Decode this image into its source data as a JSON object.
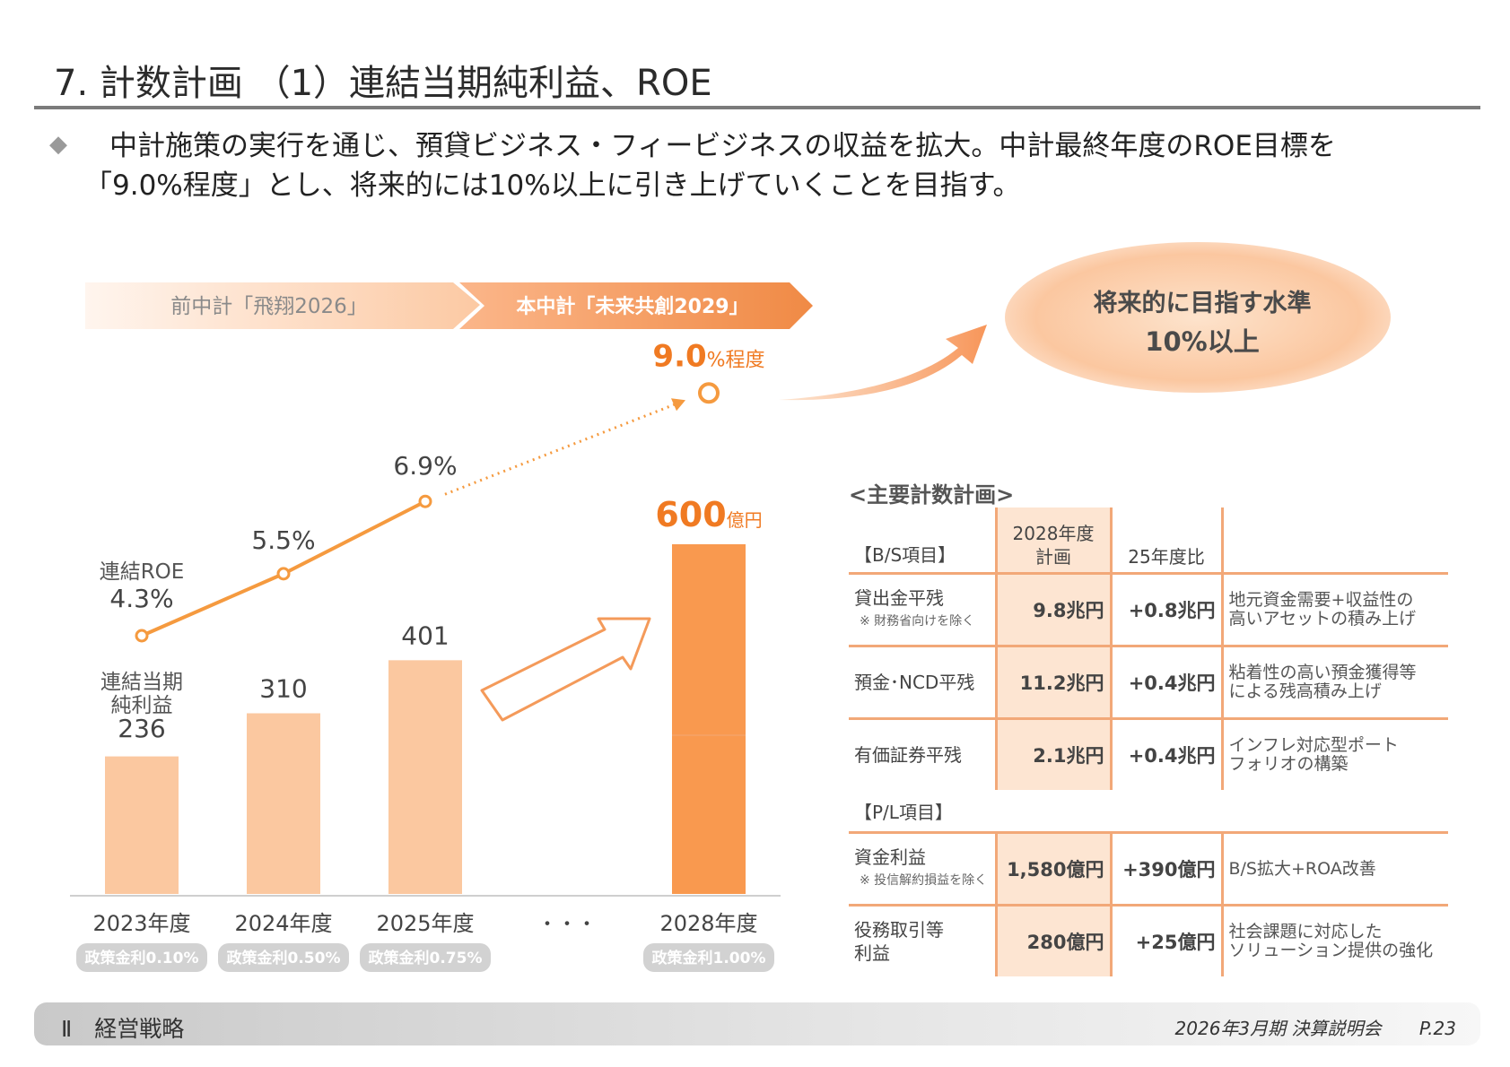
{
  "header": {
    "title": "7. 計数計画 （1）連結当期純利益、ROE",
    "bullet": "◆",
    "lead_line1": "中計施策の実行を通じ、預貸ビジネス・フィービジネスの収益を拡大。中計最終年度のROE目標を",
    "lead_line2": "「9.0%程度」とし、将来的には10%以上に引き上げていくことを目指す。"
  },
  "phases": {
    "previous": "前中計「飛翔2026」",
    "current": "本中計「未来共創2029」"
  },
  "future_target": {
    "line1": "将来的に目指す水準",
    "line2": "10%以上"
  },
  "chart_data": {
    "type": "bar",
    "categories": [
      "2023年度",
      "2024年度",
      "2025年度",
      "2028年度"
    ],
    "gap_label": "・・・",
    "net_income_label": "連結当期\n純利益",
    "net_income_label_line1": "連結当期",
    "net_income_label_line2": "純利益",
    "net_income_values": [
      236,
      310,
      401,
      600
    ],
    "net_income_value_labels": [
      "236",
      "310",
      "401",
      "600"
    ],
    "net_income_unit": "億円",
    "roe_label": "連結ROE",
    "roe_values": [
      4.3,
      5.5,
      6.9,
      9.0
    ],
    "roe_value_labels": [
      "4.3%",
      "5.5%",
      "6.9%",
      "9.0"
    ],
    "roe_target_suffix": "%程度",
    "policy_rates": [
      "政策金利0.10%",
      "政策金利0.50%",
      "政策金利0.75%",
      "政策金利1.00%"
    ],
    "colors": {
      "bar_light": "#fbc8a0",
      "bar_dark": "#f9994f",
      "roe_line": "#f59a3f",
      "target_text": "#f07a22"
    }
  },
  "table": {
    "title": "<主要計数計画>",
    "bs_section": "【B/S項目】",
    "col_plan_line1": "2028年度",
    "col_plan_line2": "計画",
    "col_diff": "25年度比",
    "bs_rows": [
      {
        "item": "貸出金平残",
        "note": "※ 財務省向けを除く",
        "plan": "9.8兆円",
        "diff": "+0.8兆円",
        "desc1": "地元資金需要+収益性の",
        "desc2": "高いアセットの積み上げ"
      },
      {
        "item": "預金･NCD平残",
        "note": "",
        "plan": "11.2兆円",
        "diff": "+0.4兆円",
        "desc1": "粘着性の高い預金獲得等",
        "desc2": "による残高積み上げ"
      },
      {
        "item": "有価証券平残",
        "note": "",
        "plan": "2.1兆円",
        "diff": "+0.4兆円",
        "desc1": "インフレ対応型ポート",
        "desc2": "フォリオの構築"
      }
    ],
    "pl_section": "【P/L項目】",
    "pl_rows": [
      {
        "item": "資金利益",
        "item2": "",
        "note": "※ 投信解約損益を除く",
        "plan": "1,580億円",
        "diff": "+390億円",
        "desc1": "B/S拡大+ROA改善",
        "desc2": ""
      },
      {
        "item": "役務取引等",
        "item2": "利益",
        "note": "",
        "plan": "280億円",
        "diff": "+25億円",
        "desc1": "社会課題に対応した",
        "desc2": "ソリューション提供の強化"
      }
    ]
  },
  "footer": {
    "section": "Ⅱ　経営戦略",
    "event": "2026年3月期 決算説明会",
    "page": "P.23"
  }
}
